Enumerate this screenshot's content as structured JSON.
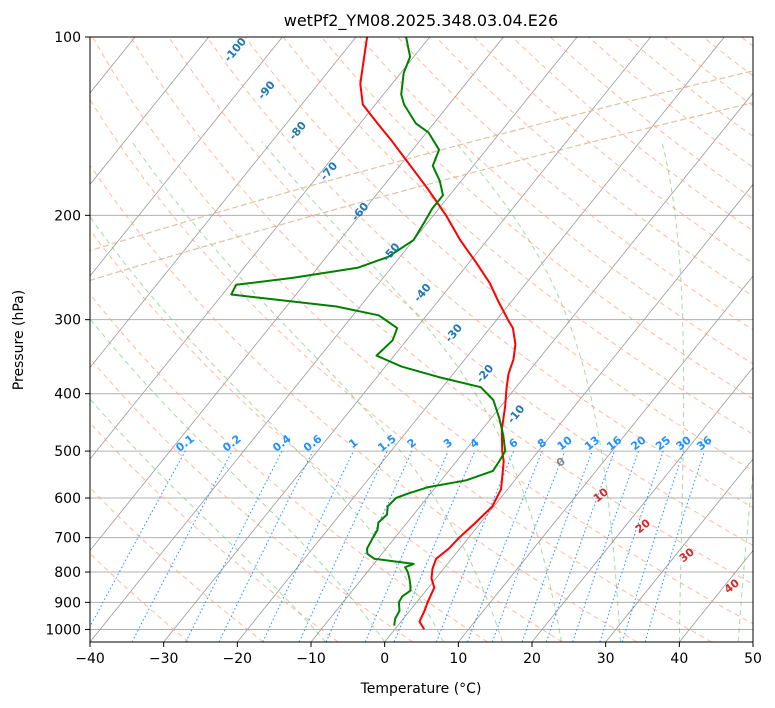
{
  "chart_data": {
    "type": "line",
    "subtype": "skew-T log-P diagram",
    "title": "wetPf2_YM08.2025.348.03.04.E26",
    "xlabel": "Temperature (°C)",
    "ylabel": "Pressure (hPa)",
    "xlim": [
      -40,
      50
    ],
    "ylim": [
      1050,
      100
    ],
    "y_scale": "log",
    "grid": true,
    "x_ticks": [
      "−40",
      "−30",
      "−20",
      "−10",
      "0",
      "10",
      "20",
      "30",
      "40",
      "50"
    ],
    "y_ticks": [
      "100",
      "200",
      "300",
      "400",
      "500",
      "600",
      "700",
      "800",
      "900",
      "1000"
    ],
    "series": [
      {
        "role": "temperature",
        "color": "#ff0000",
        "points": [
          [
            1000,
            4.0
          ],
          [
            970,
            2.5
          ],
          [
            930,
            2.0
          ],
          [
            900,
            1.5
          ],
          [
            850,
            0.8
          ],
          [
            820,
            -0.6
          ],
          [
            790,
            -1.5
          ],
          [
            760,
            -2.1
          ],
          [
            730,
            -1.5
          ],
          [
            700,
            -1.3
          ],
          [
            660,
            -0.7
          ],
          [
            620,
            -0.2
          ],
          [
            580,
            -0.9
          ],
          [
            550,
            -2.2
          ],
          [
            520,
            -3.6
          ],
          [
            500,
            -4.9
          ],
          [
            460,
            -7.3
          ],
          [
            420,
            -9.4
          ],
          [
            390,
            -11.3
          ],
          [
            370,
            -12.5
          ],
          [
            350,
            -13.4
          ],
          [
            330,
            -14.8
          ],
          [
            310,
            -16.9
          ],
          [
            300,
            -18.5
          ],
          [
            280,
            -21.7
          ],
          [
            260,
            -25.0
          ],
          [
            240,
            -29.1
          ],
          [
            220,
            -33.7
          ],
          [
            200,
            -38.3
          ],
          [
            180,
            -43.8
          ],
          [
            160,
            -50.2
          ],
          [
            150,
            -53.7
          ],
          [
            140,
            -57.6
          ],
          [
            130,
            -61.7
          ],
          [
            120,
            -64.3
          ],
          [
            110,
            -66.3
          ],
          [
            100,
            -68.5
          ]
        ]
      },
      {
        "role": "dewpoint",
        "color": "#008000",
        "points": [
          [
            985,
            -0.5
          ],
          [
            960,
            -1.1
          ],
          [
            930,
            -1.4
          ],
          [
            900,
            -2.4
          ],
          [
            880,
            -2.6
          ],
          [
            860,
            -2.1
          ],
          [
            840,
            -2.8
          ],
          [
            820,
            -3.6
          ],
          [
            800,
            -4.5
          ],
          [
            785,
            -5.4
          ],
          [
            775,
            -4.6
          ],
          [
            760,
            -10.5
          ],
          [
            745,
            -12.0
          ],
          [
            730,
            -12.6
          ],
          [
            700,
            -13.0
          ],
          [
            680,
            -13.2
          ],
          [
            660,
            -13.9
          ],
          [
            640,
            -13.6
          ],
          [
            620,
            -14.4
          ],
          [
            600,
            -14.2
          ],
          [
            590,
            -13.1
          ],
          [
            575,
            -11.0
          ],
          [
            560,
            -6.6
          ],
          [
            540,
            -4.0
          ],
          [
            520,
            -4.2
          ],
          [
            500,
            -4.5
          ],
          [
            470,
            -6.5
          ],
          [
            440,
            -8.9
          ],
          [
            410,
            -11.7
          ],
          [
            390,
            -14.8
          ],
          [
            375,
            -21.6
          ],
          [
            360,
            -27.8
          ],
          [
            345,
            -32.4
          ],
          [
            325,
            -31.9
          ],
          [
            310,
            -32.6
          ],
          [
            295,
            -36.5
          ],
          [
            285,
            -43.2
          ],
          [
            272,
            -58.8
          ],
          [
            262,
            -59.2
          ],
          [
            255,
            -52.3
          ],
          [
            245,
            -44.5
          ],
          [
            235,
            -41.6
          ],
          [
            220,
            -40.0
          ],
          [
            205,
            -40.5
          ],
          [
            195,
            -40.9
          ],
          [
            185,
            -40.9
          ],
          [
            175,
            -42.9
          ],
          [
            165,
            -45.5
          ],
          [
            155,
            -46.4
          ],
          [
            145,
            -49.7
          ],
          [
            140,
            -52.4
          ],
          [
            130,
            -56.1
          ],
          [
            125,
            -57.6
          ],
          [
            115,
            -59.6
          ],
          [
            108,
            -60.5
          ],
          [
            100,
            -63.2
          ]
        ]
      }
    ],
    "isotherms_dry_label_color": "#1f77b4",
    "dry_adiabat_labels": [
      "-100",
      "-90",
      "-80",
      "-70",
      "-60",
      "-50",
      "-40",
      "-30",
      "-20",
      "-10"
    ],
    "mixing_ratio_label_color": "#1e90ff",
    "mixing_ratio_labels": [
      "0.1",
      "0.2",
      "0.4",
      "0.6",
      "1",
      "1.5",
      "2",
      "3",
      "4",
      "6",
      "8",
      "10",
      "13",
      "16",
      "20",
      "25",
      "30",
      "36"
    ],
    "moist_adiabat_label_color": "#d62728",
    "moist_adiabat_labels": [
      "0",
      "10",
      "20",
      "30",
      "40"
    ],
    "colors": {
      "isotherm": "#999999",
      "dry_adiabat": "#ff9c7a",
      "moist_adiabat": "#6dbf6d",
      "mixing_ratio": "#1e90ff",
      "pressure_grid": "#b0b0b0",
      "background_curve": "#d2b48c"
    }
  }
}
